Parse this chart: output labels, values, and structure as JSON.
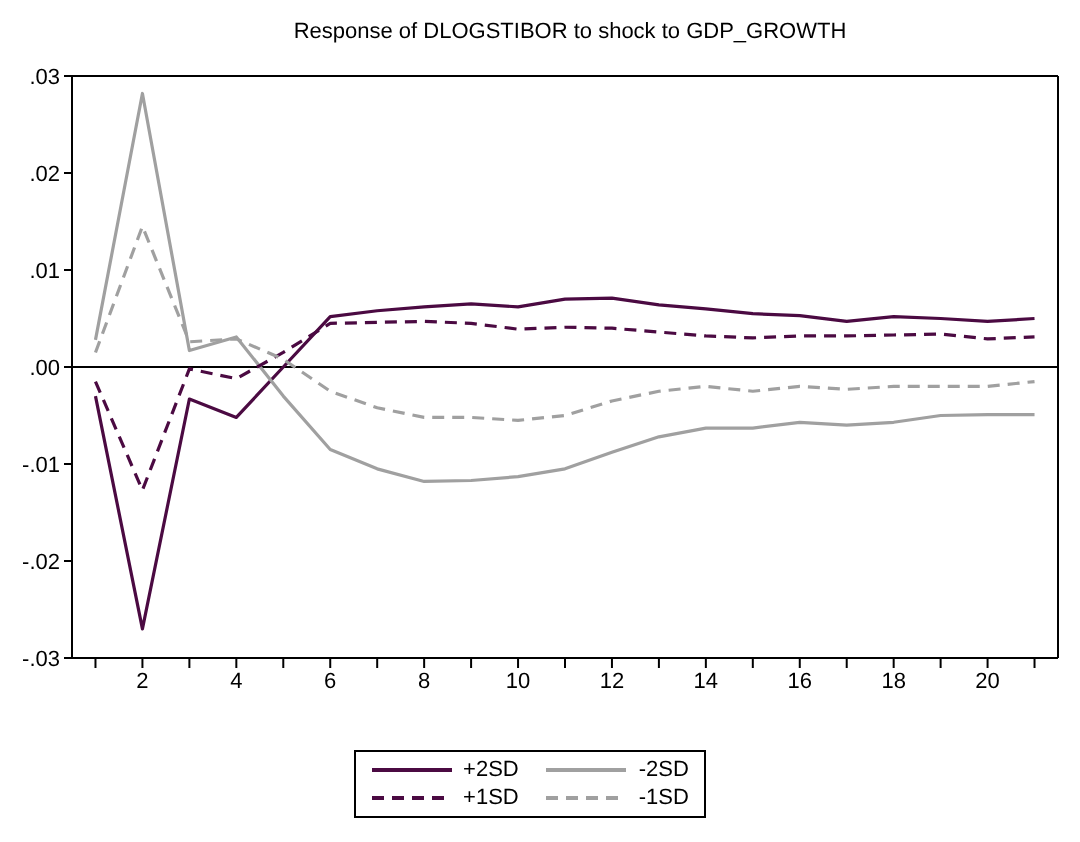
{
  "chart_data": {
    "type": "line",
    "title": "Response of DLOGSTIBOR to shock to GDP_GROWTH",
    "x": [
      1,
      2,
      3,
      4,
      5,
      6,
      7,
      8,
      9,
      10,
      11,
      12,
      13,
      14,
      15,
      16,
      17,
      18,
      19,
      20,
      21
    ],
    "xlim": [
      0.5,
      21.5
    ],
    "xticks": [
      {
        "value": 1,
        "label": null
      },
      2,
      {
        "value": 3,
        "label": null
      },
      4,
      {
        "value": 5,
        "label": null
      },
      6,
      {
        "value": 7,
        "label": null
      },
      8,
      {
        "value": 9,
        "label": null
      },
      10,
      {
        "value": 11,
        "label": null
      },
      12,
      {
        "value": 13,
        "label": null
      },
      14,
      {
        "value": 15,
        "label": null
      },
      16,
      {
        "value": 17,
        "label": null
      },
      18,
      {
        "value": 19,
        "label": null
      },
      20,
      {
        "value": 21,
        "label": null
      }
    ],
    "ylim": [
      -0.03,
      0.03
    ],
    "yticks": [
      {
        "value": -0.03,
        "label": "-.03"
      },
      {
        "value": -0.02,
        "label": "-.02"
      },
      {
        "value": -0.01,
        "label": "-.01"
      },
      {
        "value": 0,
        "label": ".00"
      },
      {
        "value": 0.01,
        "label": ".01"
      },
      {
        "value": 0.02,
        "label": ".02"
      },
      {
        "value": 0.03,
        "label": ".03"
      }
    ],
    "grid": false,
    "legend": "bottom",
    "ref_lines": [
      {
        "axis": "y",
        "value": 0,
        "color": "#000000"
      }
    ],
    "series": [
      {
        "name": "+2SD",
        "color": "#4b0a42",
        "line_style": "solid",
        "values": [
          -0.003,
          -0.027,
          -0.0033,
          -0.0052,
          0.0,
          0.0052,
          0.0058,
          0.0062,
          0.0065,
          0.0062,
          0.007,
          0.0071,
          0.0064,
          0.006,
          0.0055,
          0.0053,
          0.0047,
          0.0052,
          0.005,
          0.0047,
          0.005
        ]
      },
      {
        "name": "-2SD",
        "color": "#a0a0a0",
        "line_style": "solid",
        "values": [
          0.0028,
          0.0282,
          0.0017,
          0.0031,
          -0.003,
          -0.0085,
          -0.0105,
          -0.0118,
          -0.0117,
          -0.0113,
          -0.0105,
          -0.0088,
          -0.0072,
          -0.0063,
          -0.0063,
          -0.0057,
          -0.006,
          -0.0057,
          -0.005,
          -0.0049,
          -0.0049
        ]
      },
      {
        "name": "+1SD",
        "color": "#4b0a42",
        "line_style": "dashed",
        "values": [
          -0.0015,
          -0.0127,
          -0.0002,
          -0.0012,
          0.0015,
          0.0045,
          0.0046,
          0.0047,
          0.0045,
          0.0039,
          0.0041,
          0.004,
          0.0036,
          0.0032,
          0.003,
          0.0032,
          0.0032,
          0.0033,
          0.0034,
          0.0029,
          0.0031
        ]
      },
      {
        "name": "-1SD",
        "color": "#a0a0a0",
        "line_style": "dashed",
        "values": [
          0.0015,
          0.0145,
          0.0026,
          0.0029,
          0.0008,
          -0.0025,
          -0.0042,
          -0.0052,
          -0.0052,
          -0.0055,
          -0.005,
          -0.0035,
          -0.0025,
          -0.002,
          -0.0025,
          -0.002,
          -0.0023,
          -0.002,
          -0.002,
          -0.002,
          -0.0015
        ]
      }
    ]
  }
}
